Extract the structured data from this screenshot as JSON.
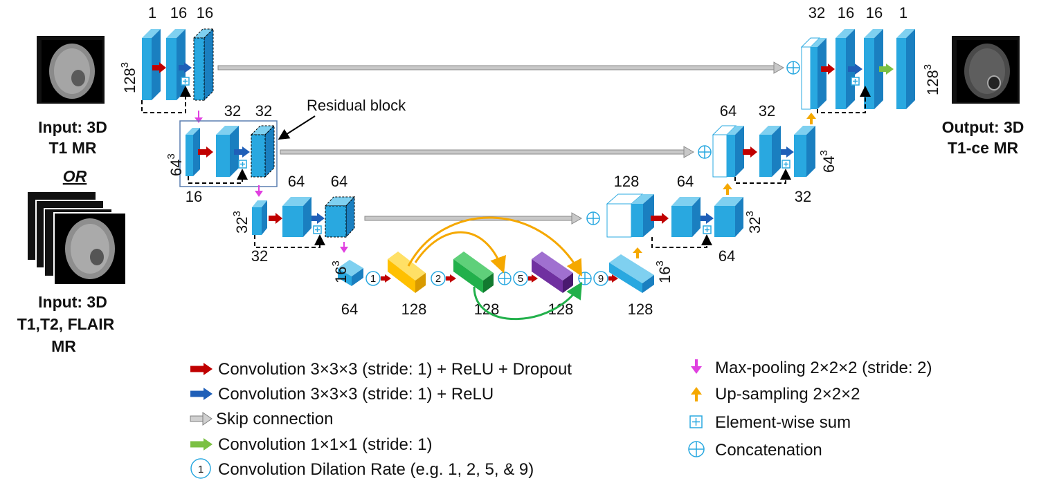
{
  "inputs": {
    "t1": [
      "Input: 3D",
      "T1 MR"
    ],
    "or": "OR",
    "multi": [
      "Input: 3D",
      "T1,T2, FLAIR",
      "MR"
    ]
  },
  "output": [
    "Output: 3D",
    "T1-ce MR"
  ],
  "encoder": {
    "level1": {
      "channels": [
        "1",
        "16",
        "16"
      ],
      "size_base": "128",
      "size_exp": "3"
    },
    "level2": {
      "channels_top": [
        "32",
        "32"
      ],
      "channel_bottom": "16",
      "size_base": "64",
      "size_exp": "3"
    },
    "level3": {
      "channels_top": [
        "64",
        "64"
      ],
      "channel_bottom": "32",
      "size_base": "32",
      "size_exp": "3"
    },
    "bottleneck": {
      "size_base": "16",
      "size_exp": "3",
      "channels": [
        "64",
        "128",
        "128",
        "128"
      ]
    }
  },
  "decoder": {
    "level3": {
      "channels_top": [
        "128",
        "64"
      ],
      "channel_bottom": "64",
      "size_base": "32",
      "size_exp": "3",
      "in_channels": "128"
    },
    "level2": {
      "channels_top": [
        "64",
        "32"
      ],
      "channel_bottom": "32",
      "size_base": "64",
      "size_exp": "3"
    },
    "level1": {
      "channels": [
        "32",
        "16",
        "16",
        "1"
      ],
      "size_base": "128",
      "size_exp": "3"
    }
  },
  "residual_block_label": "Residual block",
  "dilation_rates": [
    "1",
    "2",
    "5",
    "9"
  ],
  "legend": {
    "conv_relu_dropout": "Convolution 3×3×3 (stride: 1) + ReLU + Dropout",
    "conv_relu": "Convolution 3×3×3 (stride: 1) + ReLU",
    "skip": "Skip connection",
    "conv1": "Convolution 1×1×1 (stride: 1)",
    "dilation": "Convolution Dilation Rate (e.g. 1, 2, 5, & 9)",
    "dilation_example": "1",
    "maxpool": "Max-pooling 2×2×2 (stride: 2)",
    "upsample": "Up-sampling 2×2×2",
    "elem_sum": "Element-wise sum",
    "concat": "Concatenation"
  },
  "colors": {
    "block_front": "#29a8e0",
    "block_side": "#1a7fc0",
    "block_top": "#7fd0f0",
    "red_arrow": "#c00000",
    "blue_arrow": "#1f5fb8",
    "gray_arrow": "#a6a6a6",
    "green_arrow": "#7bc043",
    "pink_arrow": "#e040e0",
    "orange_arrow": "#f5a800",
    "yellow_block": "#ffc000",
    "green_block": "#22b04b",
    "purple_block": "#7030a0"
  }
}
